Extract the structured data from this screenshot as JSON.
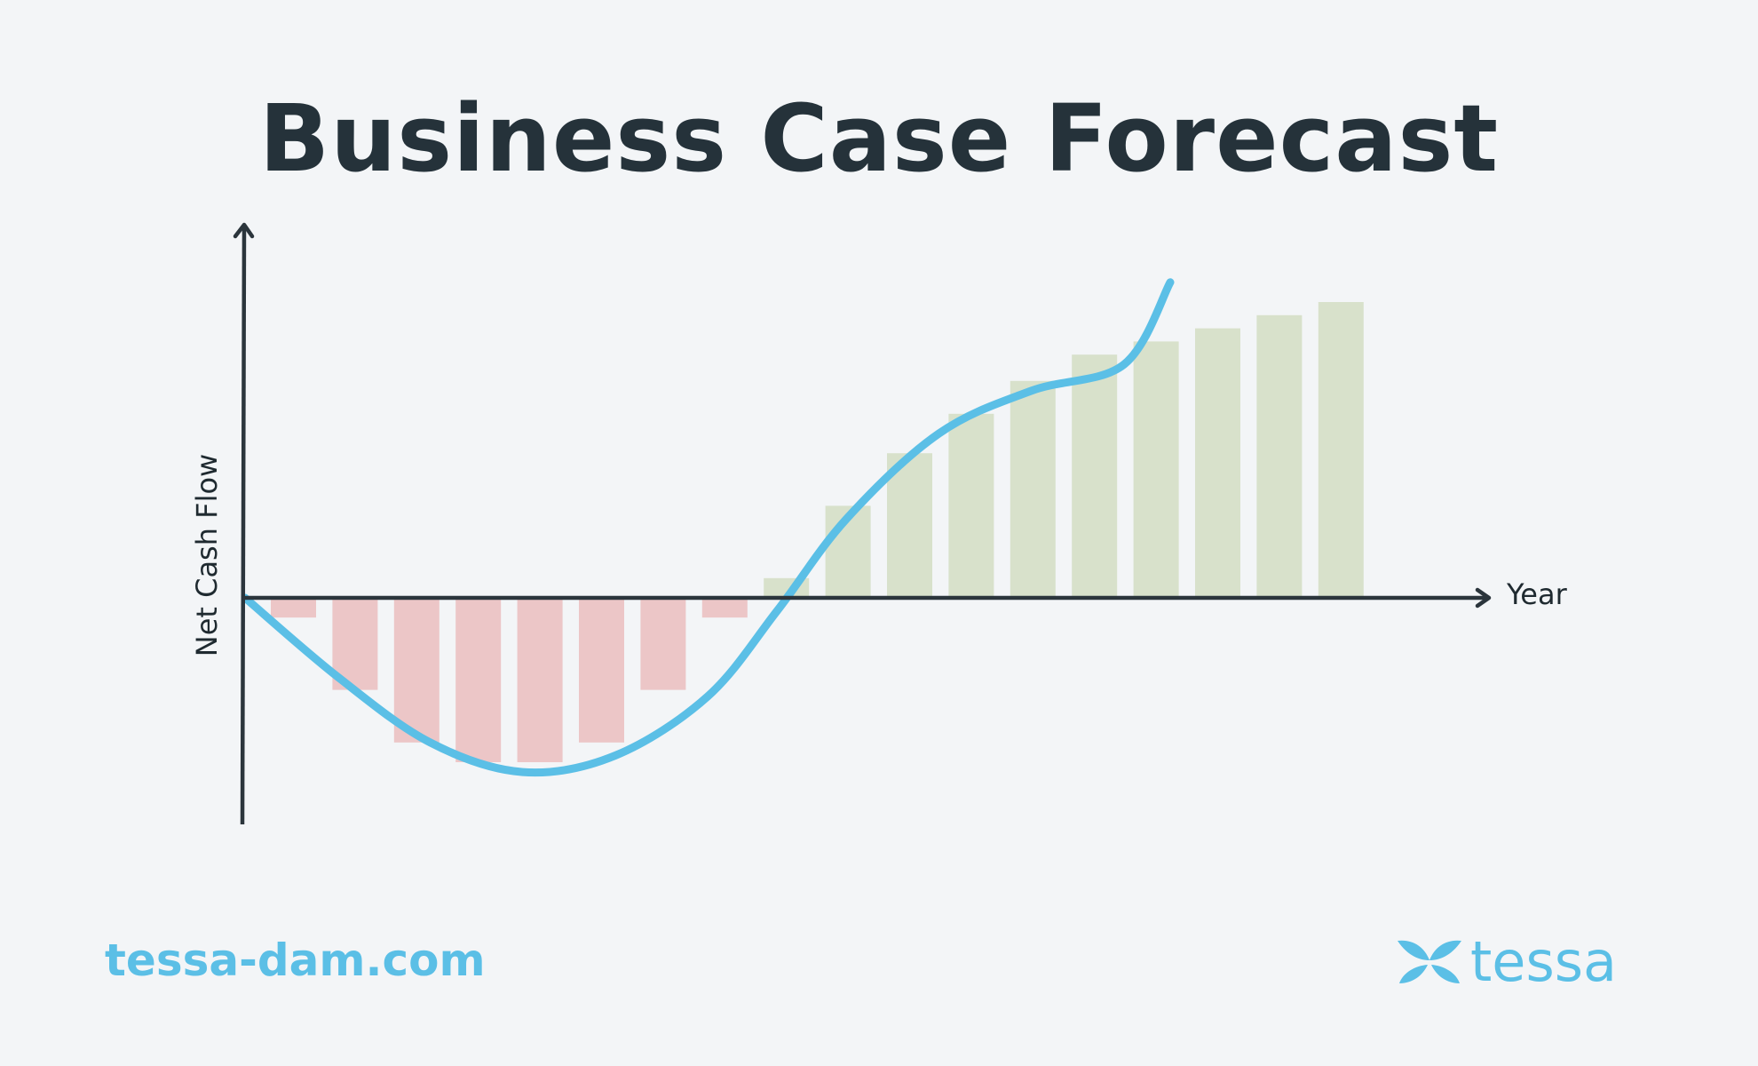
{
  "title": "Business Case Forecast",
  "footer": {
    "url": "tessa-dam.com",
    "brand_name": "tessa",
    "brand_icon": "butterfly-logo-icon"
  },
  "colors": {
    "background": "#f3f5f7",
    "title": "#25323a",
    "axis": "#2b353c",
    "line": "#5bbfe6",
    "negative_bar": "#ecc6c7",
    "positive_bar": "#d8e1cb",
    "brand": "#5bbfe6"
  },
  "chart_data": {
    "type": "bar",
    "xlabel": "Year",
    "ylabel": "Net Cash Flow",
    "grid": false,
    "legend": "none",
    "ylim": [
      -27,
      44
    ],
    "series": [
      {
        "type": "bar",
        "values": [
          -3,
          -14,
          -22,
          -25,
          -25,
          -22,
          -14,
          -3,
          3,
          14,
          22,
          28,
          33,
          37,
          39,
          41,
          43,
          45
        ]
      },
      {
        "type": "line",
        "x": [
          0,
          2,
          4,
          6,
          8,
          10,
          11.5,
          13,
          15,
          17,
          19,
          20
        ],
        "values": [
          0,
          -12,
          -22,
          -26.5,
          -24,
          -15,
          -2,
          12,
          25,
          31.5,
          35.5,
          48
        ]
      }
    ]
  }
}
